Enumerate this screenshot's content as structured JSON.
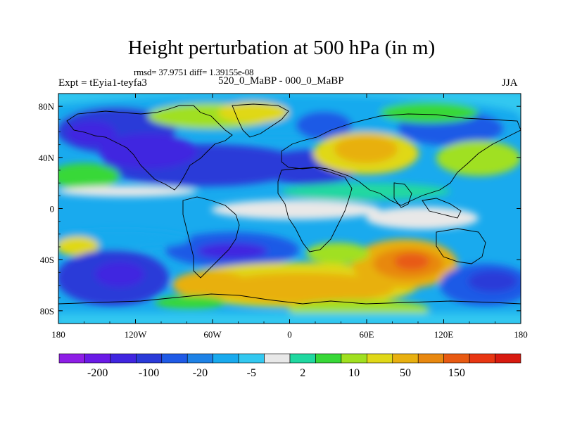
{
  "header": {
    "title": "Height perturbation at 500 hPa (in m)",
    "stats": "rmsd= 37.9751 diff= 1.39155e-08",
    "left_label": "Expt = tEyia1-teyfa3",
    "center_label": "520_0_MaBP - 000_0_MaBP",
    "right_label": "JJA"
  },
  "chart_data": {
    "type": "heatmap",
    "title": "Height perturbation at 500 hPa (in m)",
    "xlabel": "",
    "ylabel": "",
    "xlim": [
      -180,
      180
    ],
    "ylim": [
      -90,
      90
    ],
    "x_ticks": [
      {
        "value": -180,
        "label": "180"
      },
      {
        "value": -120,
        "label": "120W"
      },
      {
        "value": -60,
        "label": "60W"
      },
      {
        "value": 0,
        "label": "0"
      },
      {
        "value": 60,
        "label": "60E"
      },
      {
        "value": 120,
        "label": "120E"
      },
      {
        "value": 180,
        "label": "180"
      }
    ],
    "y_ticks": [
      {
        "value": 80,
        "label": "80N"
      },
      {
        "value": 40,
        "label": "40N"
      },
      {
        "value": 0,
        "label": "0"
      },
      {
        "value": -40,
        "label": "40S"
      },
      {
        "value": -80,
        "label": "80S"
      }
    ],
    "colorbar": {
      "colors": [
        "#8e1ee6",
        "#6a1ae6",
        "#4025e0",
        "#2a3ad8",
        "#1f5ae6",
        "#1e82e6",
        "#19aaee",
        "#33c8f0",
        "#e8e8e8",
        "#20d8a0",
        "#38d838",
        "#a0e020",
        "#e0d818",
        "#e8b010",
        "#e88810",
        "#e85a12",
        "#e83612",
        "#d81a10"
      ],
      "labels": [
        "-200",
        "-100",
        "-20",
        "-5",
        "2",
        "10",
        "50",
        "150"
      ]
    },
    "regions": [
      {
        "name": "north-atlantic-blue-band",
        "lon": -80,
        "lat": 35,
        "value": -100
      },
      {
        "name": "north-pacific-blue",
        "lon": -140,
        "lat": 60,
        "value": -100
      },
      {
        "name": "eurasia-orange",
        "lon": 60,
        "lat": 45,
        "value": 50
      },
      {
        "name": "south-atlantic-orange",
        "lon": -20,
        "lat": -55,
        "value": 50
      },
      {
        "name": "indian-ocean-red",
        "lon": 110,
        "lat": -40,
        "value": 150
      },
      {
        "name": "south-pacific-blue",
        "lon": -150,
        "lat": -45,
        "value": -100
      },
      {
        "name": "southwest-pacific-blue",
        "lon": 160,
        "lat": -55,
        "value": -100
      }
    ]
  }
}
